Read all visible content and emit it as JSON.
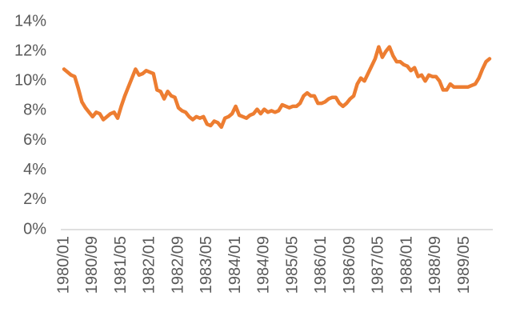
{
  "chart_data": {
    "type": "line",
    "categories": [
      "1980/01",
      null,
      null,
      null,
      null,
      null,
      null,
      null,
      "1980/09",
      null,
      null,
      null,
      null,
      null,
      null,
      null,
      "1981/05",
      null,
      null,
      null,
      null,
      null,
      null,
      null,
      "1982/01",
      null,
      null,
      null,
      null,
      null,
      null,
      null,
      "1982/09",
      null,
      null,
      null,
      null,
      null,
      null,
      null,
      "1983/05",
      null,
      null,
      null,
      null,
      null,
      null,
      null,
      "1984/01",
      null,
      null,
      null,
      null,
      null,
      null,
      null,
      "1984/09",
      null,
      null,
      null,
      null,
      null,
      null,
      null,
      "1985/05",
      null,
      null,
      null,
      null,
      null,
      null,
      null,
      "1986/01",
      null,
      null,
      null,
      null,
      null,
      null,
      null,
      "1986/09",
      null,
      null,
      null,
      null,
      null,
      null,
      null,
      "1987/05",
      null,
      null,
      null,
      null,
      null,
      null,
      null,
      "1988/01",
      null,
      null,
      null,
      null,
      null,
      null,
      null,
      "1988/09",
      null,
      null,
      null,
      null,
      null,
      null,
      null,
      "1989/05",
      null,
      null,
      null,
      null,
      null,
      null,
      null
    ],
    "values": [
      10.8,
      10.6,
      10.4,
      10.3,
      9.5,
      8.6,
      8.2,
      7.9,
      7.6,
      7.9,
      7.8,
      7.4,
      7.6,
      7.8,
      7.9,
      7.5,
      8.3,
      9.0,
      9.6,
      10.2,
      10.8,
      10.4,
      10.5,
      10.7,
      10.6,
      10.5,
      9.4,
      9.3,
      8.8,
      9.3,
      9.0,
      8.9,
      8.2,
      8.0,
      7.9,
      7.6,
      7.4,
      7.6,
      7.5,
      7.6,
      7.1,
      7.0,
      7.3,
      7.2,
      6.9,
      7.5,
      7.6,
      7.8,
      8.3,
      7.7,
      7.6,
      7.5,
      7.7,
      7.8,
      8.1,
      7.8,
      8.1,
      7.9,
      8.0,
      7.9,
      8.0,
      8.4,
      8.3,
      8.2,
      8.3,
      8.3,
      8.5,
      9.0,
      9.2,
      9.0,
      9.0,
      8.5,
      8.5,
      8.6,
      8.8,
      8.9,
      8.9,
      8.5,
      8.3,
      8.5,
      8.8,
      9.0,
      9.8,
      10.2,
      10.0,
      10.5,
      11.0,
      11.5,
      12.3,
      11.6,
      12.0,
      12.3,
      11.7,
      11.3,
      11.3,
      11.1,
      11.0,
      10.7,
      10.9,
      10.3,
      10.4,
      10.0,
      10.4,
      10.3,
      10.3,
      10.0,
      9.4,
      9.4,
      9.8,
      9.6,
      9.6,
      9.6,
      9.6,
      9.6,
      9.7,
      9.8,
      10.2,
      10.8,
      11.3,
      11.5
    ],
    "color": "#ed7d31",
    "ylim": [
      0,
      14
    ],
    "yticks": [
      {
        "value": 0,
        "label": "0%"
      },
      {
        "value": 2,
        "label": "2%"
      },
      {
        "value": 4,
        "label": "4%"
      },
      {
        "value": 6,
        "label": "6%"
      },
      {
        "value": 8,
        "label": "8%"
      },
      {
        "value": 10,
        "label": "10%"
      },
      {
        "value": 12,
        "label": "12%"
      },
      {
        "value": 14,
        "label": "14%"
      }
    ],
    "grid": false
  }
}
